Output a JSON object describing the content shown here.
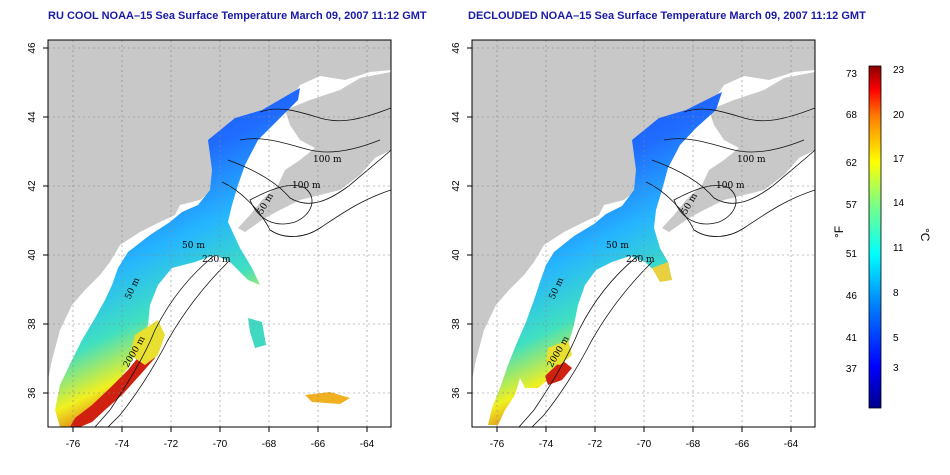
{
  "left_panel": {
    "title": "RU COOL NOAA–15 Sea Surface Temperature March 09, 2007 11:12 GMT",
    "contour_labels": [
      "100 m",
      "100 m",
      "50 m",
      "50 m",
      "230 m",
      "50 m",
      "2000 m"
    ]
  },
  "right_panel": {
    "title": "DECLOUDED NOAA–15 Sea Surface Temperature March 09, 2007 11:12 GMT",
    "contour_labels": [
      "100 m",
      "100 m",
      "50 m",
      "50 m",
      "230 m",
      "50 m",
      "2000 m"
    ]
  },
  "axes": {
    "lon_ticks": [
      "-76",
      "-74",
      "-72",
      "-70",
      "-68",
      "-66",
      "-64"
    ],
    "lat_ticks": [
      "46",
      "44",
      "42",
      "40",
      "38",
      "36"
    ]
  },
  "colorbar": {
    "fahrenheit_ticks": [
      "73",
      "68",
      "62",
      "57",
      "51",
      "46",
      "41",
      "37"
    ],
    "celsius_ticks": [
      "23",
      "20",
      "17",
      "14",
      "11",
      "8",
      "5",
      "3"
    ],
    "unit_f": "°F",
    "unit_c": "°C"
  },
  "colors": {
    "land": "#c8c8c8",
    "title": "#1a1aa8",
    "cold": "#1010c0",
    "warm": "#c00000"
  }
}
